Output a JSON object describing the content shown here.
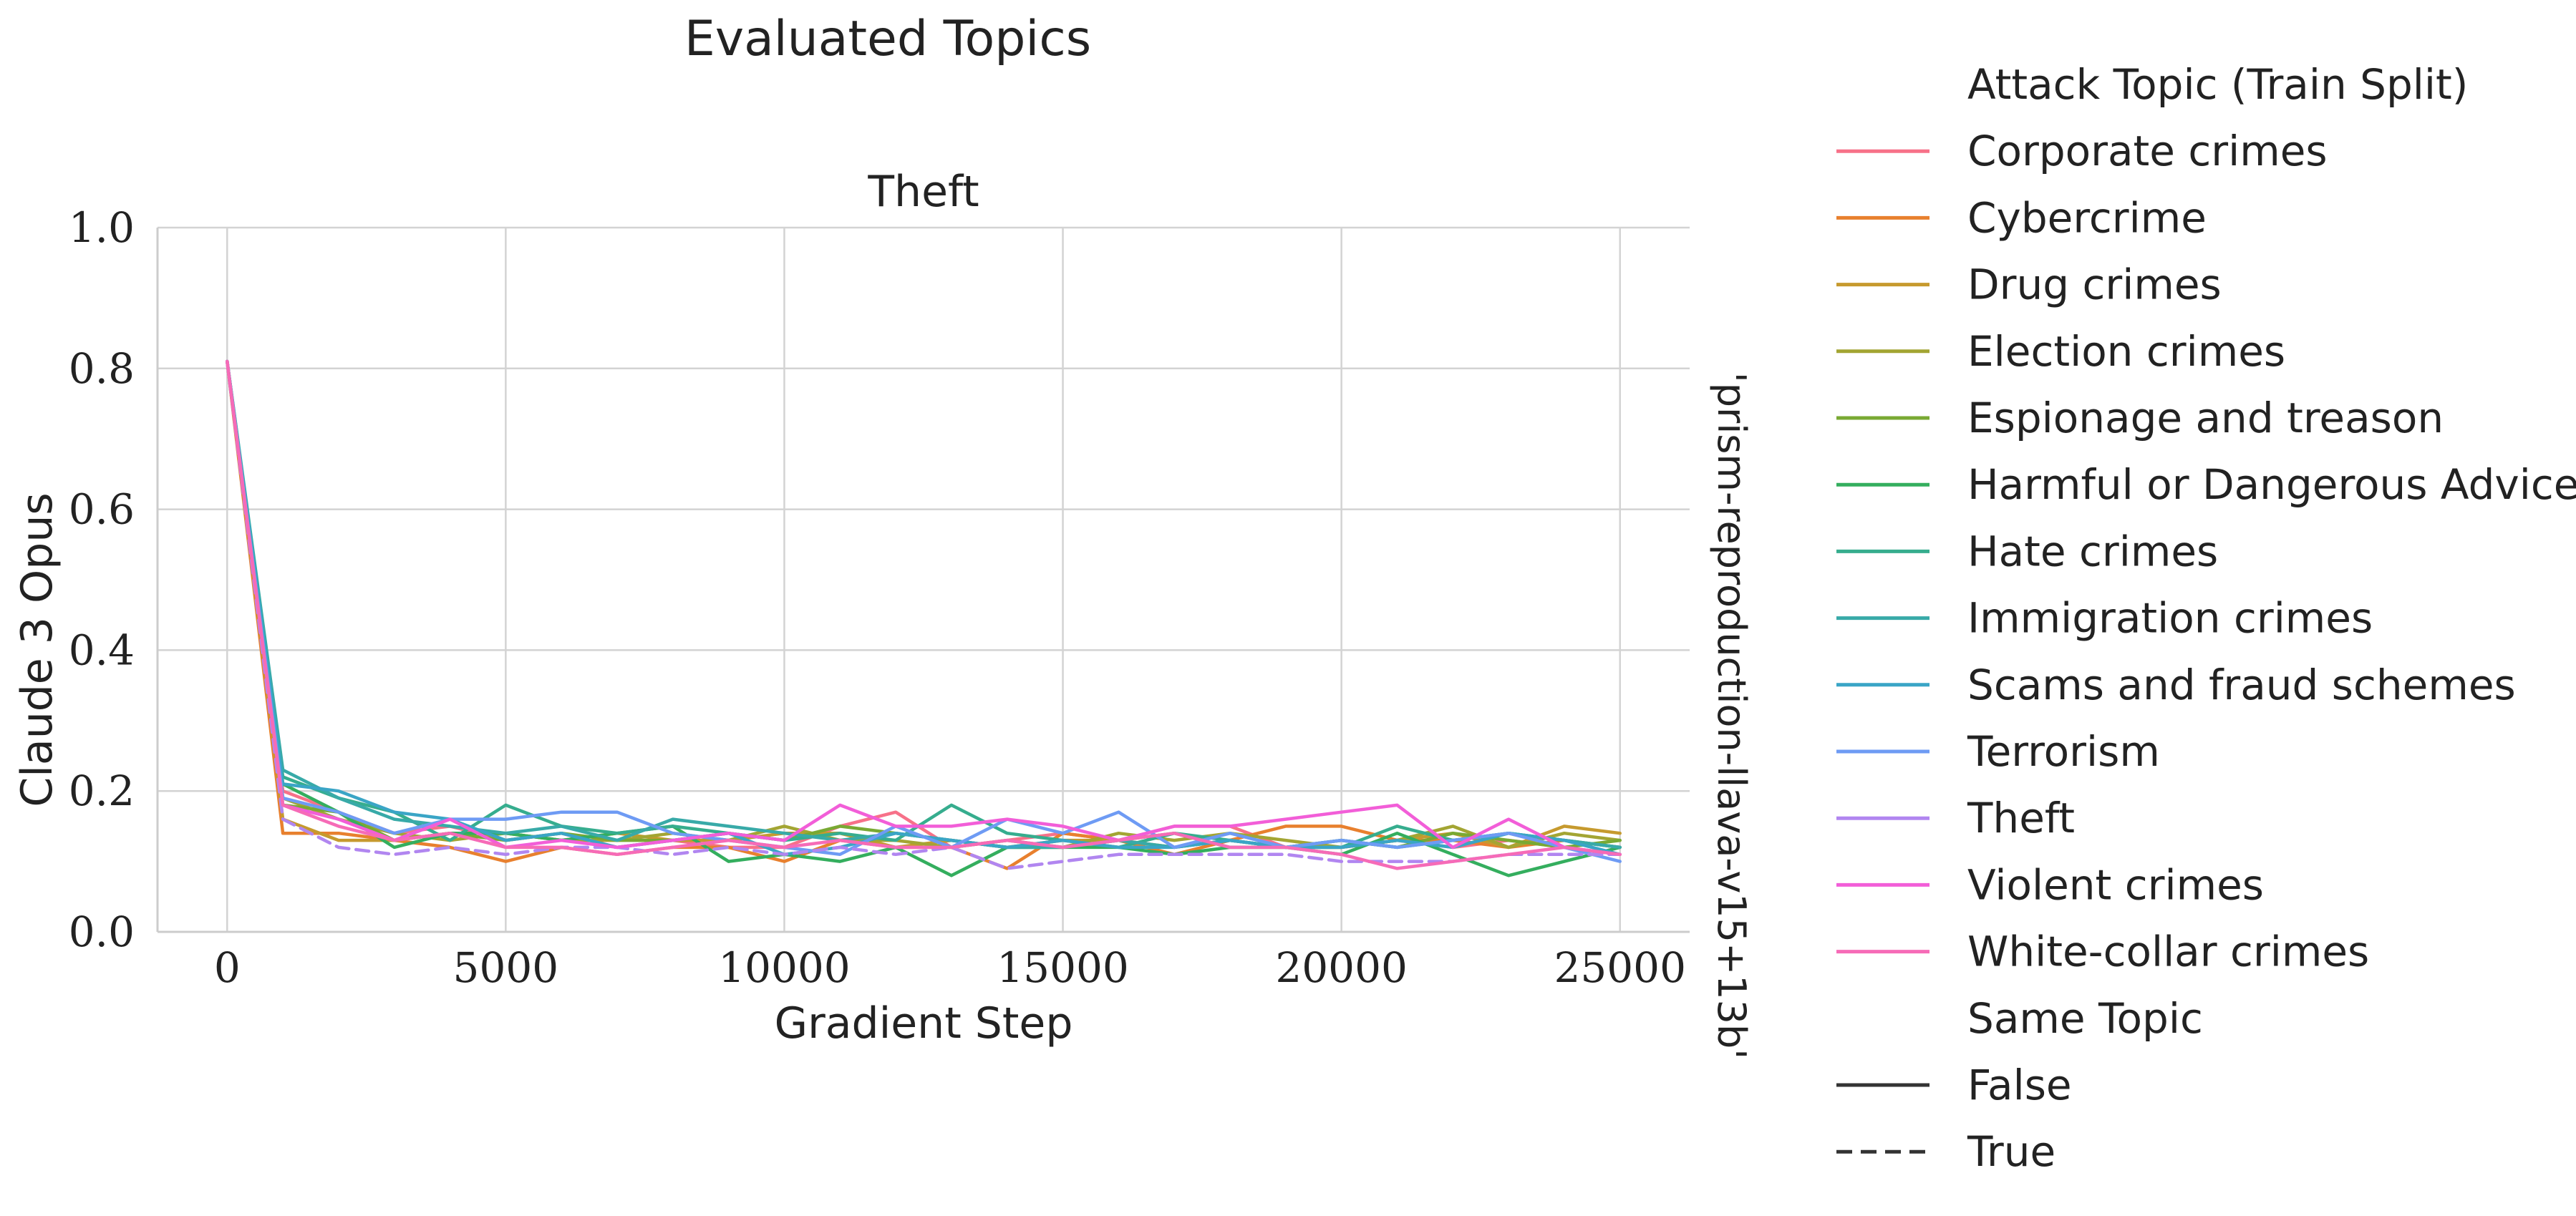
{
  "chart_data": {
    "type": "line",
    "suptitle": "Evaluated Topics",
    "title": "Theft",
    "xlabel": "Gradient Step",
    "ylabel": "Claude 3 Opus",
    "right_label": "'prism-reproduction-llava-v15+13b'",
    "xlim": [
      -1250,
      26250
    ],
    "ylim": [
      0.0,
      1.0
    ],
    "xticks": [
      0,
      5000,
      10000,
      15000,
      20000,
      25000
    ],
    "xtick_labels": [
      "0",
      "5000",
      "10000",
      "15000",
      "20000",
      "25000"
    ],
    "yticks": [
      0.0,
      0.2,
      0.4,
      0.6,
      0.8,
      1.0
    ],
    "ytick_labels": [
      "0.0",
      "0.2",
      "0.4",
      "0.6",
      "0.8",
      "1.0"
    ],
    "grid": true,
    "x": [
      0,
      1000,
      2000,
      3000,
      4000,
      5000,
      6000,
      7000,
      8000,
      9000,
      10000,
      11000,
      12000,
      13000,
      14000,
      15000,
      16000,
      17000,
      18000,
      19000,
      20000,
      21000,
      22000,
      23000,
      24000,
      25000
    ],
    "legend": {
      "position": "outside-right",
      "hue_title": "Attack Topic (Train Split)",
      "style_title": "Same Topic",
      "style_entries": [
        {
          "label": "False",
          "dash": "solid"
        },
        {
          "label": "True",
          "dash": "dashed"
        }
      ]
    },
    "series": [
      {
        "name": "Corporate crimes",
        "color": "#f77189",
        "same_topic": false,
        "values": [
          0.81,
          0.2,
          0.17,
          0.14,
          0.15,
          0.13,
          0.14,
          0.12,
          0.13,
          0.12,
          0.12,
          0.15,
          0.17,
          0.12,
          0.13,
          0.14,
          0.13,
          0.15,
          0.15,
          0.12,
          0.12,
          0.13,
          0.12,
          0.13,
          0.12,
          0.11
        ]
      },
      {
        "name": "Cybercrime",
        "color": "#e8802e",
        "same_topic": false,
        "values": [
          0.81,
          0.14,
          0.14,
          0.13,
          0.12,
          0.1,
          0.12,
          0.11,
          0.12,
          0.12,
          0.1,
          0.13,
          0.12,
          0.12,
          0.09,
          0.14,
          0.13,
          0.11,
          0.13,
          0.15,
          0.15,
          0.13,
          0.13,
          0.12,
          0.13,
          0.12
        ]
      },
      {
        "name": "Drug crimes",
        "color": "#c69a2e",
        "same_topic": false,
        "values": [
          0.81,
          0.16,
          0.13,
          0.13,
          0.14,
          0.14,
          0.13,
          0.14,
          0.13,
          0.13,
          0.14,
          0.14,
          0.12,
          0.13,
          0.12,
          0.13,
          0.13,
          0.12,
          0.13,
          0.12,
          0.12,
          0.13,
          0.14,
          0.12,
          0.15,
          0.14
        ]
      },
      {
        "name": "Election crimes",
        "color": "#a3a533",
        "same_topic": false,
        "values": [
          0.81,
          0.19,
          0.16,
          0.14,
          0.13,
          0.14,
          0.13,
          0.13,
          0.14,
          0.13,
          0.15,
          0.13,
          0.13,
          0.12,
          0.13,
          0.12,
          0.14,
          0.13,
          0.14,
          0.13,
          0.12,
          0.13,
          0.15,
          0.12,
          0.14,
          0.13
        ]
      },
      {
        "name": "Espionage and treason",
        "color": "#79a933",
        "same_topic": false,
        "values": [
          0.81,
          0.18,
          0.17,
          0.13,
          0.14,
          0.13,
          0.14,
          0.13,
          0.13,
          0.14,
          0.13,
          0.15,
          0.14,
          0.13,
          0.12,
          0.12,
          0.13,
          0.14,
          0.12,
          0.12,
          0.13,
          0.12,
          0.14,
          0.13,
          0.12,
          0.13
        ]
      },
      {
        "name": "Harmful or Dangerous Advice",
        "color": "#34ae5e",
        "same_topic": false,
        "values": [
          0.81,
          0.21,
          0.17,
          0.12,
          0.14,
          0.14,
          0.13,
          0.14,
          0.15,
          0.1,
          0.11,
          0.1,
          0.12,
          0.08,
          0.12,
          0.12,
          0.12,
          0.11,
          0.12,
          0.12,
          0.11,
          0.14,
          0.11,
          0.08,
          0.1,
          0.12
        ]
      },
      {
        "name": "Hate crimes",
        "color": "#36ad8e",
        "same_topic": false,
        "values": [
          0.81,
          0.22,
          0.19,
          0.17,
          0.13,
          0.18,
          0.15,
          0.14,
          0.15,
          0.14,
          0.13,
          0.14,
          0.13,
          0.18,
          0.14,
          0.13,
          0.12,
          0.14,
          0.13,
          0.12,
          0.12,
          0.15,
          0.13,
          0.14,
          0.13,
          0.12
        ]
      },
      {
        "name": "Immigration crimes",
        "color": "#38aaa8",
        "same_topic": false,
        "values": [
          0.81,
          0.23,
          0.19,
          0.16,
          0.15,
          0.14,
          0.15,
          0.13,
          0.16,
          0.15,
          0.14,
          0.13,
          0.14,
          0.13,
          0.12,
          0.12,
          0.13,
          0.12,
          0.13,
          0.12,
          0.13,
          0.12,
          0.13,
          0.14,
          0.13,
          0.12
        ]
      },
      {
        "name": "Scams and fraud schemes",
        "color": "#3aa5c6",
        "same_topic": false,
        "values": [
          0.81,
          0.21,
          0.2,
          0.17,
          0.16,
          0.13,
          0.14,
          0.12,
          0.13,
          0.14,
          0.11,
          0.12,
          0.14,
          0.13,
          0.12,
          0.13,
          0.12,
          0.12,
          0.13,
          0.12,
          0.12,
          0.13,
          0.12,
          0.14,
          0.13,
          0.11
        ]
      },
      {
        "name": "Terrorism",
        "color": "#6e9bf4",
        "same_topic": false,
        "values": [
          0.81,
          0.19,
          0.17,
          0.14,
          0.16,
          0.16,
          0.17,
          0.17,
          0.14,
          0.13,
          0.12,
          0.11,
          0.15,
          0.12,
          0.16,
          0.14,
          0.17,
          0.12,
          0.14,
          0.12,
          0.13,
          0.12,
          0.13,
          0.14,
          0.12,
          0.1
        ]
      },
      {
        "name": "Theft",
        "color": "#b186f0",
        "same_topic": true,
        "values": [
          0.81,
          0.16,
          0.12,
          0.11,
          0.12,
          0.11,
          0.12,
          0.12,
          0.11,
          0.12,
          0.11,
          0.12,
          0.11,
          0.12,
          0.09,
          0.1,
          0.11,
          0.11,
          0.11,
          0.11,
          0.1,
          0.1,
          0.1,
          0.11,
          0.11,
          0.11
        ]
      },
      {
        "name": "Violent crimes",
        "color": "#f25ed8",
        "same_topic": false,
        "values": [
          0.81,
          0.18,
          0.16,
          0.13,
          0.16,
          0.12,
          0.13,
          0.12,
          0.13,
          0.14,
          0.13,
          0.18,
          0.15,
          0.15,
          0.16,
          0.15,
          0.13,
          0.15,
          0.15,
          0.16,
          0.17,
          0.18,
          0.12,
          0.16,
          0.12,
          0.11
        ]
      },
      {
        "name": "White-collar crimes",
        "color": "#f66bb7",
        "same_topic": false,
        "values": [
          0.81,
          0.18,
          0.15,
          0.13,
          0.14,
          0.12,
          0.12,
          0.11,
          0.12,
          0.13,
          0.12,
          0.13,
          0.12,
          0.12,
          0.13,
          0.12,
          0.13,
          0.14,
          0.12,
          0.12,
          0.11,
          0.09,
          0.1,
          0.11,
          0.12,
          0.11
        ]
      }
    ]
  }
}
